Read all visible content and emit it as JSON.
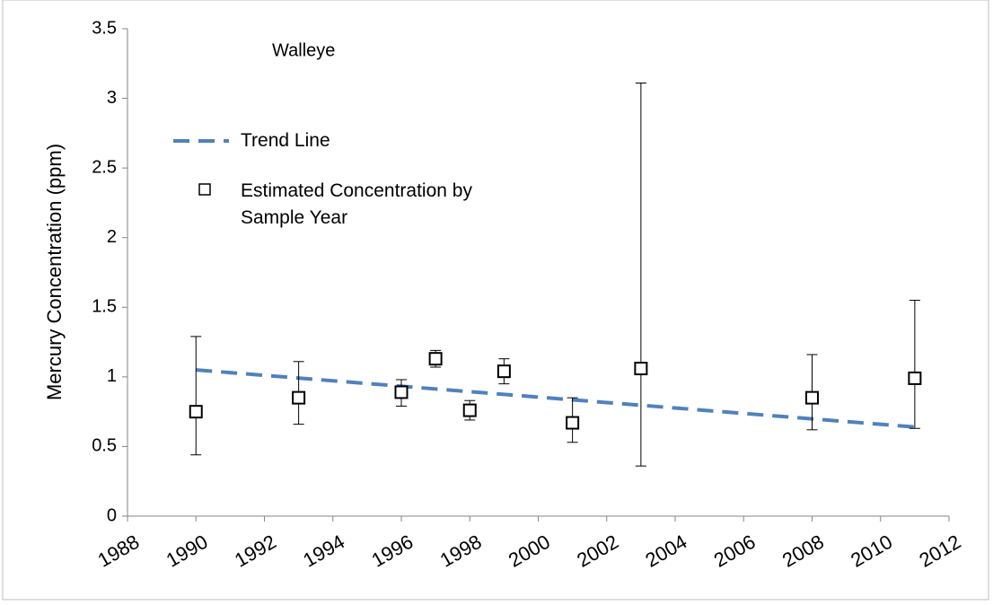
{
  "chart_data": {
    "type": "scatter",
    "annotation": "Walleye",
    "y_label": "Mercury Concentration (ppm)",
    "xlim": [
      1988,
      2012
    ],
    "xticks": [
      1988,
      1990,
      1992,
      1994,
      1996,
      1998,
      2000,
      2002,
      2004,
      2006,
      2008,
      2010,
      2012
    ],
    "ylim": [
      0,
      3.5
    ],
    "yticks": [
      0,
      0.5,
      1,
      1.5,
      2,
      2.5,
      3,
      3.5
    ],
    "grid": false,
    "legend": "upper left",
    "series": [
      {
        "name": "Trend Line",
        "type": "line",
        "style": "dashed",
        "color": "#4f81bd",
        "x": [
          1990,
          2011
        ],
        "values": [
          1.05,
          0.64
        ]
      },
      {
        "name": "Estimated Concentration by Sample Year",
        "type": "scatter",
        "marker": "square",
        "color": "#000000",
        "x": [
          1990,
          1993,
          1996,
          1997,
          1998,
          1999,
          2001,
          2003,
          2008,
          2011
        ],
        "values": [
          0.75,
          0.85,
          0.89,
          1.13,
          0.76,
          1.04,
          0.67,
          1.06,
          0.85,
          0.99
        ],
        "low": [
          0.44,
          0.66,
          0.79,
          1.07,
          0.69,
          0.95,
          0.53,
          0.36,
          0.62,
          0.63
        ],
        "high": [
          1.29,
          1.11,
          0.98,
          1.19,
          0.83,
          1.13,
          0.85,
          3.11,
          1.16,
          1.55
        ]
      }
    ]
  }
}
